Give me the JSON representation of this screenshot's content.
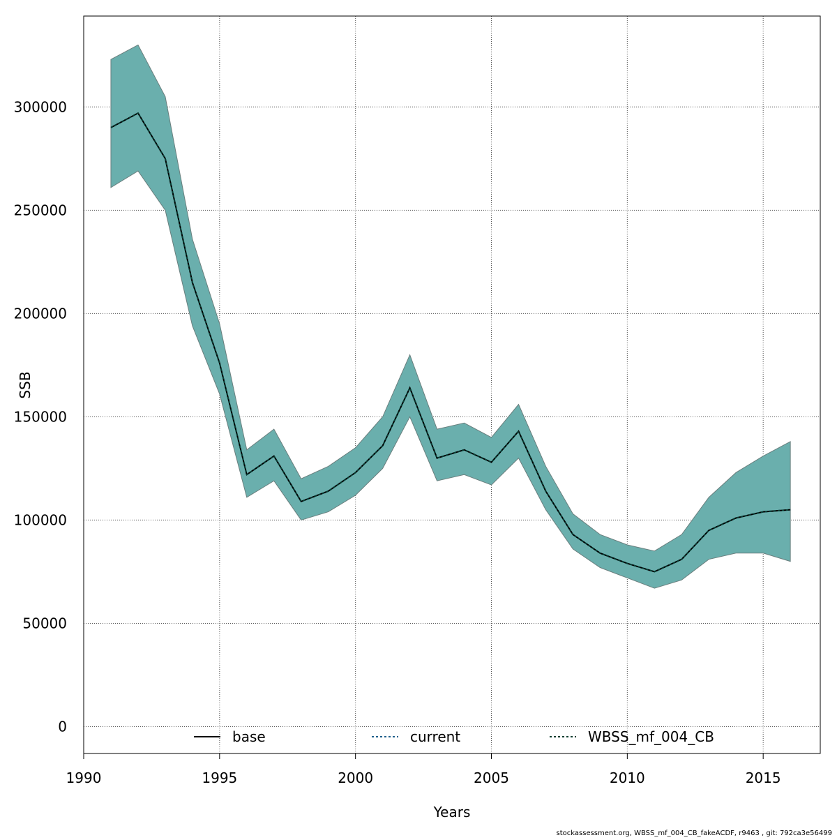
{
  "chart_data": {
    "type": "line",
    "xlabel": "Years",
    "ylabel": "SSB",
    "xlim": [
      1990,
      2017.1
    ],
    "ylim": [
      -13000,
      344000
    ],
    "xticks": [
      1990,
      1995,
      2000,
      2005,
      2010,
      2015
    ],
    "yticks": [
      0,
      50000,
      100000,
      150000,
      200000,
      250000,
      300000
    ],
    "grid": true,
    "legend_position": "bottom",
    "band_color": "#6aafad",
    "x": [
      1991,
      1992,
      1993,
      1994,
      1995,
      1996,
      1997,
      1998,
      1999,
      2000,
      2001,
      2002,
      2003,
      2004,
      2005,
      2006,
      2007,
      2008,
      2009,
      2010,
      2011,
      2012,
      2013,
      2014,
      2015,
      2016
    ],
    "confidence_band": {
      "upper": [
        323000,
        330000,
        305000,
        236000,
        195000,
        134000,
        144000,
        120000,
        126000,
        135000,
        150000,
        180000,
        144000,
        147000,
        140000,
        156000,
        126000,
        103000,
        93000,
        88000,
        85000,
        93000,
        111000,
        123000,
        131000,
        138000
      ],
      "lower": [
        261000,
        269000,
        250000,
        194000,
        161000,
        111000,
        119000,
        100000,
        104000,
        112000,
        125000,
        150000,
        119000,
        122000,
        117000,
        130000,
        105000,
        86000,
        77000,
        72000,
        67000,
        71000,
        81000,
        84000,
        84000,
        80000
      ]
    },
    "series": [
      {
        "name": "base",
        "color": "#000000",
        "dash": "",
        "values": [
          290000,
          297000,
          275000,
          215000,
          176000,
          122000,
          131000,
          109000,
          114000,
          123000,
          136000,
          164000,
          130000,
          134000,
          128000,
          143000,
          114000,
          93000,
          84000,
          79000,
          75000,
          81000,
          95000,
          101000,
          104000,
          105000
        ]
      },
      {
        "name": "current",
        "color": "#1f5f8b",
        "dash": "3,3",
        "values": [
          290000,
          297000,
          275000,
          215000,
          176000,
          122000,
          131000,
          109000,
          114000,
          123000,
          136000,
          164000,
          130000,
          134000,
          128000,
          143000,
          114000,
          93000,
          84000,
          79000,
          75000,
          81000,
          95000,
          101000,
          104000,
          105000
        ]
      },
      {
        "name": "WBSS_mf_004_CB",
        "color": "#0a3d2f",
        "dash": "3,3",
        "values": [
          290000,
          297000,
          275000,
          215000,
          176000,
          122000,
          131000,
          109000,
          114000,
          123000,
          136000,
          164000,
          130000,
          134000,
          128000,
          143000,
          114000,
          93000,
          84000,
          79000,
          75000,
          81000,
          95000,
          101000,
          104000,
          105000
        ]
      }
    ],
    "footer": "stockassessment.org, WBSS_mf_004_CB_fakeACDF, r9463 , git: 792ca3e56499"
  }
}
